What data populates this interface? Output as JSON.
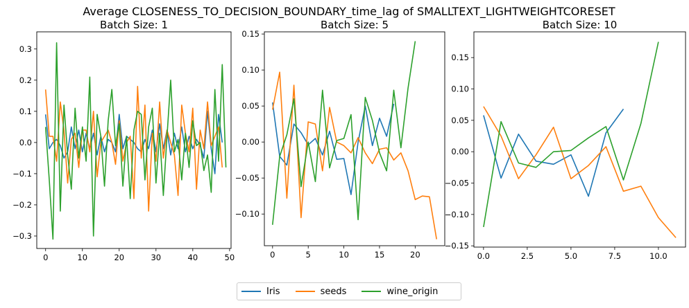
{
  "suptitle": "Average CLOSENESS_TO_DECISION_BOUNDARY_time_lag of SMALLTEXT_LIGHTWEIGHTCORESET",
  "legend": [
    {
      "label": "Iris",
      "color": "#1f77b4"
    },
    {
      "label": "seeds",
      "color": "#ff7f0e"
    },
    {
      "label": "wine_origin",
      "color": "#2ca02c"
    }
  ],
  "chart_data": [
    {
      "type": "line",
      "title": "Batch Size: 1",
      "xlim": [
        -2.4,
        50.4
      ],
      "ylim": [
        -0.34,
        0.355
      ],
      "xticks": [
        0,
        10,
        20,
        30,
        40,
        50
      ],
      "xtick_labels": [
        "0",
        "10",
        "20",
        "30",
        "40",
        "50"
      ],
      "yticks": [
        -0.3,
        -0.2,
        -0.1,
        0.0,
        0.1,
        0.2,
        0.3
      ],
      "ytick_labels": [
        "−0.3",
        "−0.2",
        "−0.1",
        "0.0",
        "0.1",
        "0.2",
        "0.3"
      ],
      "series": [
        {
          "name": "Iris",
          "color": "#1f77b4",
          "x_start": 0,
          "values": [
            0.09,
            -0.02,
            0.0,
            0.01,
            -0.01,
            -0.05,
            -0.03,
            0.05,
            -0.02,
            0.04,
            -0.03,
            0.03,
            -0.02,
            0.03,
            -0.04,
            0.02,
            -0.03,
            0.01,
            0.0,
            -0.03,
            0.09,
            -0.02,
            0.02,
            0.01,
            0.0,
            -0.02,
            -0.03,
            0.01,
            -0.02,
            0.04,
            -0.03,
            0.06,
            -0.02,
            0.04,
            -0.04,
            0.03,
            -0.02,
            0.05,
            -0.03,
            0.02,
            -0.02,
            0.01,
            -0.01,
            -0.05,
            0.1,
            -0.02,
            -0.1,
            0.09,
            0.0
          ]
        },
        {
          "name": "seeds",
          "color": "#ff7f0e",
          "x_start": 0,
          "values": [
            0.17,
            0.02,
            0.02,
            -0.06,
            0.13,
            0.04,
            -0.13,
            0.01,
            0.03,
            -0.08,
            0.04,
            0.04,
            -0.03,
            0.1,
            -0.11,
            0.0,
            0.02,
            0.04,
            0.0,
            -0.07,
            0.07,
            -0.06,
            0.0,
            0.02,
            -0.18,
            0.18,
            -0.05,
            0.12,
            -0.22,
            0.03,
            -0.06,
            0.13,
            -0.05,
            0.04,
            0.0,
            -0.04,
            -0.17,
            0.12,
            0.03,
            -0.03,
            0.11,
            -0.15,
            0.04,
            -0.02,
            0.13,
            -0.01,
            0.02,
            0.05,
            -0.08
          ]
        },
        {
          "name": "wine_origin",
          "color": "#2ca02c",
          "x_start": 0,
          "values": [
            0.05,
            -0.12,
            -0.31,
            0.32,
            -0.22,
            0.12,
            -0.04,
            -0.15,
            0.11,
            -0.05,
            0.05,
            -0.06,
            0.21,
            -0.3,
            0.09,
            0.02,
            -0.14,
            0.07,
            0.17,
            -0.01,
            0.06,
            -0.14,
            0.02,
            -0.18,
            0.04,
            0.1,
            0.09,
            -0.12,
            0.05,
            0.11,
            -0.13,
            0.03,
            -0.17,
            0.02,
            0.2,
            -0.03,
            0.01,
            -0.12,
            0.03,
            -0.08,
            0.07,
            -0.01,
            0.0,
            -0.09,
            -0.04,
            -0.16,
            0.17,
            -0.06,
            0.25,
            -0.08
          ]
        }
      ]
    },
    {
      "type": "line",
      "title": "Batch Size: 5",
      "xlim": [
        -1.15,
        24.15
      ],
      "ylim": [
        -0.144,
        0.153
      ],
      "xticks": [
        0,
        5,
        10,
        15,
        20
      ],
      "xtick_labels": [
        "0",
        "5",
        "10",
        "15",
        "20"
      ],
      "yticks": [
        -0.1,
        -0.05,
        0.0,
        0.05,
        0.1,
        0.15
      ],
      "ytick_labels": [
        "−0.10",
        "−0.05",
        "0.00",
        "0.05",
        "0.10",
        "0.15"
      ],
      "series": [
        {
          "name": "Iris",
          "color": "#1f77b4",
          "x_start": 0,
          "values": [
            0.055,
            -0.02,
            -0.032,
            0.025,
            0.013,
            -0.004,
            0.005,
            -0.018,
            0.015,
            -0.024,
            -0.023,
            -0.073,
            0.0,
            0.05,
            -0.005,
            0.033,
            0.008,
            0.053
          ]
        },
        {
          "name": "seeds",
          "color": "#ff7f0e",
          "x_start": 0,
          "values": [
            0.045,
            0.097,
            -0.078,
            0.079,
            -0.105,
            0.028,
            0.025,
            -0.04,
            0.048,
            0.0,
            -0.005,
            -0.015,
            0.006,
            -0.015,
            -0.03,
            -0.01,
            -0.008,
            -0.025,
            -0.015,
            -0.04,
            -0.08,
            -0.075,
            -0.076,
            -0.135
          ]
        },
        {
          "name": "wine_origin",
          "color": "#2ca02c",
          "x_start": 0,
          "values": [
            -0.115,
            -0.02,
            0.01,
            0.06,
            -0.062,
            0.0,
            -0.055,
            0.072,
            -0.036,
            0.002,
            0.005,
            0.038,
            -0.108,
            0.062,
            0.03,
            -0.015,
            -0.04,
            0.072,
            -0.008,
            0.075,
            0.14
          ]
        }
      ]
    },
    {
      "type": "line",
      "title": "Batch Size: 10",
      "xlim": [
        -0.55,
        11.55
      ],
      "ylim": [
        -0.152,
        0.191
      ],
      "xticks": [
        0,
        2.5,
        5,
        7.5,
        10
      ],
      "xtick_labels": [
        "0.0",
        "2.5",
        "5.0",
        "7.5",
        "10.0"
      ],
      "yticks": [
        -0.15,
        -0.1,
        -0.05,
        0.0,
        0.05,
        0.1,
        0.15
      ],
      "ytick_labels": [
        "−0.15",
        "−0.10",
        "−0.05",
        "0.00",
        "0.05",
        "0.10",
        "0.15"
      ],
      "series": [
        {
          "name": "Iris",
          "color": "#1f77b4",
          "x_start": 0,
          "values": [
            0.058,
            -0.042,
            0.028,
            -0.015,
            -0.02,
            -0.005,
            -0.071,
            0.03,
            0.068
          ]
        },
        {
          "name": "seeds",
          "color": "#ff7f0e",
          "x_start": 0,
          "values": [
            0.072,
            0.025,
            -0.043,
            -0.005,
            0.039,
            -0.043,
            -0.022,
            0.008,
            -0.063,
            -0.055,
            -0.105,
            -0.137
          ]
        },
        {
          "name": "wine_origin",
          "color": "#2ca02c",
          "x_start": 0,
          "values": [
            -0.12,
            0.048,
            -0.018,
            -0.025,
            0.0,
            0.002,
            0.022,
            0.04,
            -0.045,
            0.045,
            0.175
          ]
        }
      ]
    }
  ]
}
